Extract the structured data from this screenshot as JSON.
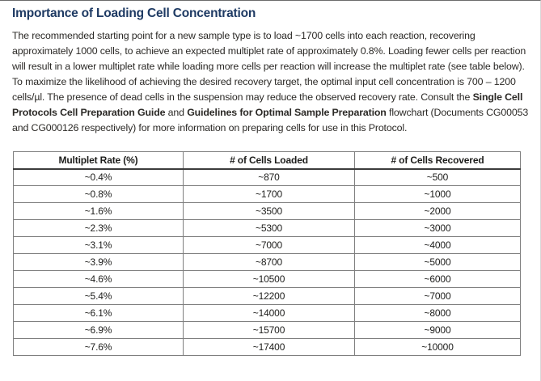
{
  "page": {
    "title": "Importance of Loading Cell Concentration"
  },
  "paragraph": {
    "segments": [
      {
        "text": "The recommended starting point for a new sample type is to load ~1700 cells into each reaction, recovering approximately 1000 cells, to achieve an expected multiplet rate of approximately 0.8%. Loading fewer cells per reaction will result in a lower multiplet rate while loading more cells per reaction will increase the multiplet rate (see table below). To maximize the likelihood of achieving the desired recovery target, the optimal input cell concentration is 700 – 1200 cells/µl. The presence of dead cells in the suspension may reduce the observed recovery rate. Consult the ",
        "bold": false
      },
      {
        "text": "Single Cell Protocols Cell Preparation Guide",
        "bold": true
      },
      {
        "text": " and ",
        "bold": false
      },
      {
        "text": "Guidelines for Optimal Sample Preparation",
        "bold": true
      },
      {
        "text": " flowchart (Documents CG00053 and CG000126 respectively) for more information on preparing cells for use in this Protocol.",
        "bold": false
      }
    ]
  },
  "table": {
    "headers": [
      "Multiplet Rate (%)",
      "# of Cells Loaded",
      "# of Cells Recovered"
    ],
    "rows": [
      [
        "~0.4%",
        "~870",
        "~500"
      ],
      [
        "~0.8%",
        "~1700",
        "~1000"
      ],
      [
        "~1.6%",
        "~3500",
        "~2000"
      ],
      [
        "~2.3%",
        "~5300",
        "~3000"
      ],
      [
        "~3.1%",
        "~7000",
        "~4000"
      ],
      [
        "~3.9%",
        "~8700",
        "~5000"
      ],
      [
        "~4.6%",
        "~10500",
        "~6000"
      ],
      [
        "~5.4%",
        "~12200",
        "~7000"
      ],
      [
        "~6.1%",
        "~14000",
        "~8000"
      ],
      [
        "~6.9%",
        "~15700",
        "~9000"
      ],
      [
        "~7.6%",
        "~17400",
        "~10000"
      ]
    ]
  },
  "colors": {
    "title": "#1e3a63",
    "body_text": "#2b2926",
    "table_border": "#7f7f7f",
    "header_underline": "#3c3c3c"
  }
}
